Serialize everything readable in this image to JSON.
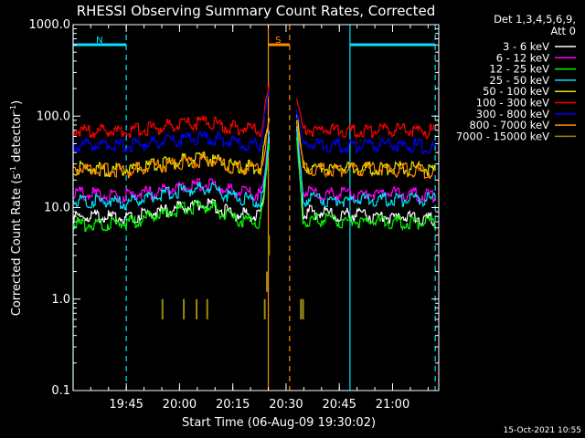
{
  "chart_data": {
    "type": "line",
    "title": "RHESSI Observing Summary Count Rates, Corrected",
    "xlabel": "Start Time (06-Aug-09 19:30:02)",
    "ylabel_main": "Corrected Count Rate (s",
    "ylabel_sup1": "-1",
    "ylabel_mid": " detector",
    "ylabel_sup2": "-1",
    "ylabel_end": ")",
    "yscale": "log",
    "ylim": [
      0.1,
      1000.0
    ],
    "xlim": [
      "19:30:02",
      "21:13:00"
    ],
    "yticks": [
      "0.1",
      "1.0",
      "10.0",
      "100.0",
      "1000.0"
    ],
    "xticks": [
      "19:45",
      "20:00",
      "20:15",
      "20:30",
      "20:45",
      "21:00"
    ],
    "legend_header_1": "Det 1,3,4,5,6,9,",
    "legend_header_2": "Att 0",
    "legend_placement": "outside-right",
    "timestamp": "15-Oct-2021 10:55",
    "flags": {
      "night": {
        "label": "N",
        "color": "#00e5ff",
        "intervals": [
          [
            "19:30:02",
            "19:45:00"
          ],
          [
            "20:48:00",
            "21:12:00"
          ]
        ]
      },
      "saa": {
        "label": "S",
        "color": "#ff8c00",
        "intervals": [
          [
            "20:25:00",
            "20:31:00"
          ]
        ]
      }
    },
    "series": [
      {
        "name": "3 - 6 keV",
        "color": "#ffffff",
        "values": [
          [
            19.5,
            8.0
          ],
          [
            19.75,
            7.8
          ],
          [
            20.0,
            10.0
          ],
          [
            20.13,
            11.0
          ],
          [
            20.25,
            8.5
          ],
          [
            20.38,
            8.0
          ],
          [
            20.4,
            15.0
          ],
          [
            20.42,
            60.0
          ],
          [
            20.55,
            70.0
          ],
          [
            20.58,
            9.0
          ],
          [
            20.75,
            8.5
          ],
          [
            21.0,
            8.0
          ],
          [
            21.2,
            7.6
          ]
        ]
      },
      {
        "name": "6 - 12 keV",
        "color": "#ff00ff",
        "values": [
          [
            19.5,
            14.0
          ],
          [
            19.75,
            13.5
          ],
          [
            20.0,
            16.5
          ],
          [
            20.13,
            18.0
          ],
          [
            20.25,
            15.0
          ],
          [
            20.38,
            14.0
          ],
          [
            20.4,
            20.0
          ],
          [
            20.42,
            70.0
          ],
          [
            20.55,
            75.0
          ],
          [
            20.58,
            15.0
          ],
          [
            20.75,
            14.0
          ],
          [
            21.0,
            14.5
          ],
          [
            21.2,
            13.8
          ]
        ]
      },
      {
        "name": "12 - 25 keV",
        "color": "#00ff00",
        "values": [
          [
            19.5,
            6.5
          ],
          [
            19.75,
            6.8
          ],
          [
            20.0,
            9.5
          ],
          [
            20.13,
            10.5
          ],
          [
            20.25,
            7.5
          ],
          [
            20.38,
            7.0
          ],
          [
            20.4,
            14.0
          ],
          [
            20.42,
            50.0
          ],
          [
            20.55,
            55.0
          ],
          [
            20.58,
            7.5
          ],
          [
            20.75,
            7.2
          ],
          [
            21.0,
            7.0
          ],
          [
            21.2,
            6.8
          ]
        ]
      },
      {
        "name": "25 - 50 keV",
        "color": "#00e5ff",
        "values": [
          [
            19.5,
            12.0
          ],
          [
            19.75,
            11.5
          ],
          [
            20.0,
            15.0
          ],
          [
            20.13,
            16.5
          ],
          [
            20.25,
            13.0
          ],
          [
            20.38,
            12.0
          ],
          [
            20.4,
            18.0
          ],
          [
            20.42,
            65.0
          ],
          [
            20.55,
            72.0
          ],
          [
            20.58,
            12.5
          ],
          [
            20.75,
            12.0
          ],
          [
            21.0,
            12.5
          ],
          [
            21.2,
            12.0
          ]
        ]
      },
      {
        "name": "50 - 100 keV",
        "color": "#e6e600",
        "values": [
          [
            19.5,
            27.0
          ],
          [
            19.75,
            26.0
          ],
          [
            20.0,
            32.0
          ],
          [
            20.13,
            35.0
          ],
          [
            20.25,
            29.0
          ],
          [
            20.38,
            27.0
          ],
          [
            20.42,
            90.0
          ],
          [
            20.55,
            95.0
          ],
          [
            20.58,
            28.0
          ],
          [
            20.75,
            27.0
          ],
          [
            21.0,
            27.0
          ],
          [
            21.2,
            26.0
          ]
        ]
      },
      {
        "name": "100 - 300 keV",
        "color": "#ff0000",
        "values": [
          [
            19.5,
            70.0
          ],
          [
            19.75,
            68.0
          ],
          [
            20.0,
            80.0
          ],
          [
            20.13,
            88.0
          ],
          [
            20.25,
            75.0
          ],
          [
            20.38,
            72.0
          ],
          [
            20.42,
            210.0
          ],
          [
            20.55,
            150.0
          ],
          [
            20.58,
            72.0
          ],
          [
            20.75,
            70.0
          ],
          [
            21.0,
            70.0
          ],
          [
            21.2,
            68.0
          ]
        ]
      },
      {
        "name": "300 - 800 keV",
        "color": "#0000ff",
        "values": [
          [
            19.5,
            50.0
          ],
          [
            19.75,
            47.0
          ],
          [
            20.0,
            55.0
          ],
          [
            20.13,
            60.0
          ],
          [
            20.25,
            52.0
          ],
          [
            20.38,
            49.0
          ],
          [
            20.42,
            170.0
          ],
          [
            20.55,
            120.0
          ],
          [
            20.58,
            49.0
          ],
          [
            20.75,
            48.0
          ],
          [
            21.0,
            48.0
          ],
          [
            21.2,
            46.0
          ]
        ]
      },
      {
        "name": "800 - 7000 keV",
        "color": "#ff8c00",
        "values": [
          [
            19.5,
            27.0
          ],
          [
            19.75,
            25.0
          ],
          [
            20.0,
            31.0
          ],
          [
            20.13,
            34.0
          ],
          [
            20.25,
            28.0
          ],
          [
            20.38,
            26.0
          ],
          [
            20.42,
            85.0
          ],
          [
            20.55,
            90.0
          ],
          [
            20.58,
            27.0
          ],
          [
            20.75,
            26.0
          ],
          [
            21.0,
            26.0
          ],
          [
            21.2,
            25.0
          ]
        ]
      },
      {
        "name": "7000 - 15000 keV",
        "color": "#9a8a10",
        "values": [
          [
            19.92,
            1.0
          ],
          [
            20.02,
            1.0
          ],
          [
            20.08,
            1.0
          ],
          [
            20.13,
            1.0
          ],
          [
            20.4,
            1.0
          ],
          [
            20.41,
            2.0
          ],
          [
            20.42,
            5.0
          ],
          [
            20.57,
            1.0
          ],
          [
            20.58,
            1.0
          ]
        ]
      }
    ]
  }
}
